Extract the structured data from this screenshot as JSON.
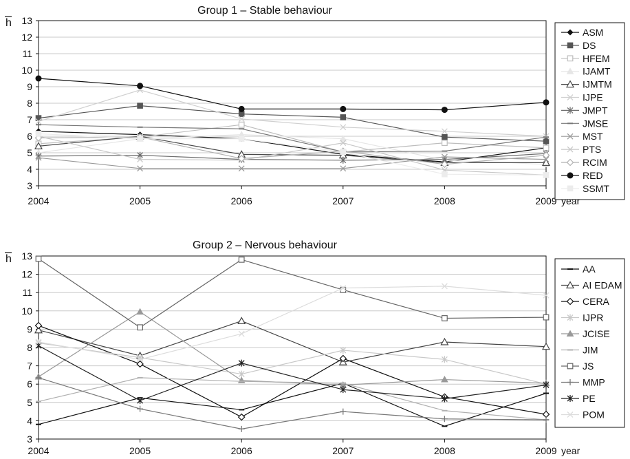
{
  "chart_data": [
    {
      "type": "line",
      "title": "Group 1 – Stable behaviour",
      "ylabel": "h",
      "xlabel": "year",
      "x": [
        2004,
        2005,
        2006,
        2007,
        2008,
        2009
      ],
      "ylim": [
        3,
        13
      ],
      "yticks": [
        3,
        4,
        5,
        6,
        7,
        8,
        9,
        10,
        11,
        12,
        13
      ],
      "grid": true,
      "legend": "right",
      "series": [
        {
          "name": "ASM",
          "color": "#111111",
          "marker": "diamond-filled",
          "values": [
            6.3,
            6.1,
            5.85,
            4.9,
            4.45,
            5.3
          ]
        },
        {
          "name": "DS",
          "color": "#555555",
          "marker": "square-filled",
          "values": [
            7.1,
            7.85,
            7.35,
            7.15,
            5.95,
            5.7
          ]
        },
        {
          "name": "HFEM",
          "color": "#bdbdbd",
          "marker": "square-open",
          "values": [
            5.55,
            5.95,
            6.7,
            5.05,
            5.6,
            5.3
          ]
        },
        {
          "name": "IJAMT",
          "color": "#e6e6e6",
          "marker": "triangle-filled",
          "values": [
            5.0,
            5.85,
            6.1,
            5.85,
            4.55,
            4.3
          ]
        },
        {
          "name": "IJMTM",
          "color": "#4a4a4a",
          "marker": "triangle-open",
          "values": [
            5.4,
            6.0,
            4.9,
            4.85,
            4.4,
            4.4
          ]
        },
        {
          "name": "IJPE",
          "color": "#d0d0d0",
          "marker": "x",
          "values": [
            6.9,
            8.8,
            7.05,
            6.55,
            6.3,
            6.0
          ]
        },
        {
          "name": "JMPT",
          "color": "#6e6e6e",
          "marker": "star",
          "values": [
            4.8,
            4.85,
            4.6,
            4.55,
            4.6,
            4.95
          ]
        },
        {
          "name": "JMSE",
          "color": "#777777",
          "marker": "dash",
          "values": [
            6.7,
            6.55,
            6.45,
            5.05,
            5.1,
            5.95
          ]
        },
        {
          "name": "MST",
          "color": "#999999",
          "marker": "x",
          "values": [
            4.7,
            4.05,
            4.05,
            4.05,
            4.75,
            4.6
          ]
        },
        {
          "name": "PTS",
          "color": "#c8c8c8",
          "marker": "x",
          "values": [
            6.0,
            4.6,
            4.55,
            5.6,
            3.95,
            3.65
          ]
        },
        {
          "name": "RCIM",
          "color": "#b0b0b0",
          "marker": "diamond-open",
          "values": [
            5.9,
            5.95,
            4.65,
            5.1,
            4.3,
            4.85
          ]
        },
        {
          "name": "RED",
          "color": "#111111",
          "marker": "circle-filled",
          "values": [
            9.5,
            9.05,
            7.65,
            7.65,
            7.6,
            8.05
          ]
        },
        {
          "name": "SSMT",
          "color": "#ececec",
          "marker": "square-filled",
          "values": [
            6.15,
            5.85,
            5.85,
            5.05,
            3.7,
            3.65
          ]
        }
      ]
    },
    {
      "type": "line",
      "title": "Group 2 – Nervous behaviour",
      "ylabel": "h",
      "xlabel": "year",
      "x": [
        2004,
        2005,
        2006,
        2007,
        2008,
        2009
      ],
      "ylim": [
        3,
        13
      ],
      "yticks": [
        3,
        4,
        5,
        6,
        7,
        8,
        9,
        10,
        11,
        12,
        13
      ],
      "grid": true,
      "legend": "right",
      "series": [
        {
          "name": "AA",
          "color": "#111111",
          "marker": "dash",
          "values": [
            3.8,
            5.25,
            4.6,
            6.05,
            3.7,
            5.5
          ]
        },
        {
          "name": "AI EDAM",
          "color": "#444444",
          "marker": "triangle-open",
          "values": [
            8.95,
            7.55,
            9.45,
            7.2,
            8.3,
            8.05
          ]
        },
        {
          "name": "CERA",
          "color": "#111111",
          "marker": "diamond-open",
          "values": [
            9.2,
            7.1,
            4.2,
            7.4,
            5.3,
            4.35
          ]
        },
        {
          "name": "IJPR",
          "color": "#c8c8c8",
          "marker": "star",
          "values": [
            8.25,
            7.45,
            6.55,
            7.85,
            7.35,
            6.0
          ]
        },
        {
          "name": "JCISE",
          "color": "#999999",
          "marker": "triangle-filled",
          "values": [
            6.4,
            9.95,
            6.2,
            5.95,
            6.25,
            6.05
          ]
        },
        {
          "name": "JIM",
          "color": "#b0b0b0",
          "marker": "dash",
          "values": [
            5.05,
            6.35,
            6.15,
            6.05,
            4.55,
            4.05
          ]
        },
        {
          "name": "JS",
          "color": "#666666",
          "marker": "square-open",
          "values": [
            12.85,
            9.1,
            12.8,
            11.15,
            9.6,
            9.65
          ]
        },
        {
          "name": "MMP",
          "color": "#777777",
          "marker": "plus",
          "values": [
            6.35,
            4.65,
            3.55,
            4.5,
            4.1,
            4.05
          ]
        },
        {
          "name": "PE",
          "color": "#222222",
          "marker": "star",
          "values": [
            8.1,
            5.1,
            7.15,
            5.7,
            5.2,
            5.95
          ]
        },
        {
          "name": "POM",
          "color": "#dcdcdc",
          "marker": "x",
          "values": [
            8.3,
            7.35,
            8.75,
            11.25,
            11.35,
            10.85
          ]
        }
      ]
    }
  ]
}
